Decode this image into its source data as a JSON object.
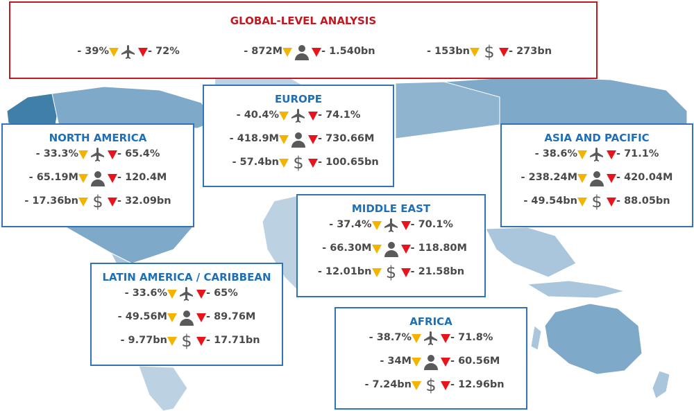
{
  "colors": {
    "global_border": "#c41820",
    "region_border": "#2f74b8",
    "down_yellow": "#f2b400",
    "down_red": "#e8141c",
    "map_land": "#a9c6dc"
  },
  "global": {
    "title": "GLOBAL-LEVEL ANALYSIS",
    "stats": [
      {
        "icon": "plane-icon",
        "left": "- 39%",
        "right": "- 72%"
      },
      {
        "icon": "person-icon",
        "left": "- 872M",
        "right": "- 1.540bn"
      },
      {
        "icon": "dollar-icon",
        "left": "- 153bn",
        "right": "- 273bn"
      }
    ]
  },
  "regions": {
    "north_america": {
      "title": "NORTH AMERICA",
      "rows": [
        {
          "icon": "plane-icon",
          "left": "- 33.3%",
          "right": "- 65.4%"
        },
        {
          "icon": "person-icon",
          "left": "- 65.19M",
          "right": "- 120.4M"
        },
        {
          "icon": "dollar-icon",
          "left": "- 17.36bn",
          "right": "- 32.09bn"
        }
      ]
    },
    "europe": {
      "title": "EUROPE",
      "rows": [
        {
          "icon": "plane-icon",
          "left": "- 40.4%",
          "right": "- 74.1%"
        },
        {
          "icon": "person-icon",
          "left": "- 418.9M",
          "right": "- 730.66M"
        },
        {
          "icon": "dollar-icon",
          "left": "- 57.4bn",
          "right": "- 100.65bn"
        }
      ]
    },
    "asia_pacific": {
      "title": "ASIA AND PACIFIC",
      "rows": [
        {
          "icon": "plane-icon",
          "left": "- 38.6%",
          "right": "- 71.1%"
        },
        {
          "icon": "person-icon",
          "left": "- 238.24M",
          "right": "- 420.04M"
        },
        {
          "icon": "dollar-icon",
          "left": "- 49.54bn",
          "right": "- 88.05bn"
        }
      ]
    },
    "middle_east": {
      "title": "MIDDLE EAST",
      "rows": [
        {
          "icon": "plane-icon",
          "left": "- 37.4%",
          "right": "- 70.1%"
        },
        {
          "icon": "person-icon",
          "left": "- 66.30M",
          "right": "- 118.80M"
        },
        {
          "icon": "dollar-icon",
          "left": "- 12.01bn",
          "right": "- 21.58bn"
        }
      ]
    },
    "latin_america": {
      "title": "LATIN AMERICA / CARIBBEAN",
      "rows": [
        {
          "icon": "plane-icon",
          "left": "- 33.6%",
          "right": "- 65%"
        },
        {
          "icon": "person-icon",
          "left": "- 49.56M",
          "right": "- 89.76M"
        },
        {
          "icon": "dollar-icon",
          "left": "- 9.77bn",
          "right": "- 17.71bn"
        }
      ]
    },
    "africa": {
      "title": "AFRICA",
      "rows": [
        {
          "icon": "plane-icon",
          "left": "- 38.7%",
          "right": "- 71.8%"
        },
        {
          "icon": "person-icon",
          "left": "- 34M",
          "right": "- 60.56M"
        },
        {
          "icon": "dollar-icon",
          "left": "- 7.24bn",
          "right": "- 12.96bn"
        }
      ]
    }
  }
}
